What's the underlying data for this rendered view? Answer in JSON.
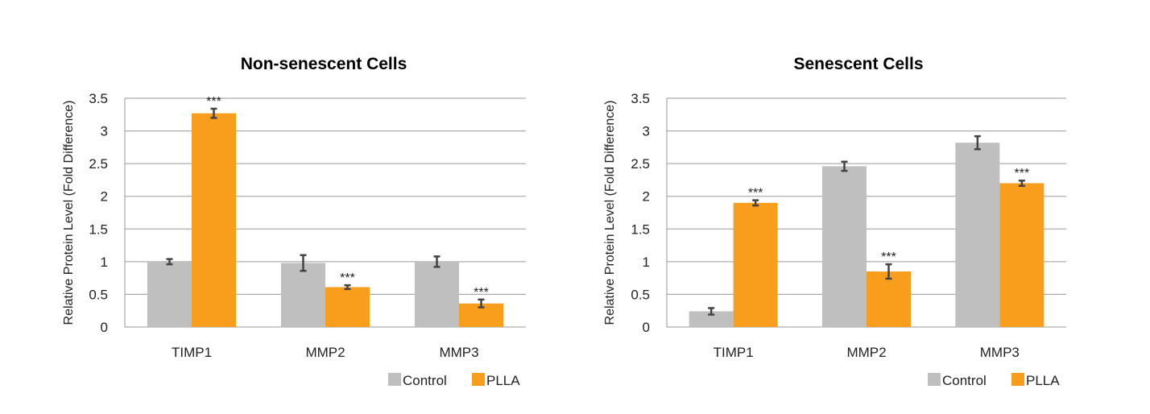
{
  "chart_data": [
    {
      "type": "bar",
      "title": "Non-senescent Cells",
      "xlabel": "",
      "ylabel": "Relative Protein Level (Fold Difference)",
      "ylim": [
        0,
        3.5
      ],
      "yticks": [
        "0",
        "0.5",
        "1",
        "1.5",
        "2",
        "2.5",
        "3",
        "3.5"
      ],
      "ytick_values": [
        0,
        0.5,
        1,
        1.5,
        2,
        2.5,
        3,
        3.5
      ],
      "grid": true,
      "legend_position": "bottom-right",
      "categories": [
        "TIMP1",
        "MMP2",
        "MMP3"
      ],
      "series": [
        {
          "name": "Control",
          "color": "#bfbfbf",
          "values": [
            1.0,
            0.98,
            1.0
          ],
          "errors": [
            0.04,
            0.12,
            0.08
          ],
          "annotations": [
            "",
            "",
            ""
          ]
        },
        {
          "name": "PLLA",
          "color": "#f99d1c",
          "values": [
            3.27,
            0.61,
            0.36
          ],
          "errors": [
            0.07,
            0.03,
            0.06
          ],
          "annotations": [
            "***",
            "***",
            "***"
          ]
        }
      ]
    },
    {
      "type": "bar",
      "title": "Senescent Cells",
      "xlabel": "",
      "ylabel": "Relative Protein Level (Fold Difference)",
      "ylim": [
        0,
        3.5
      ],
      "yticks": [
        "0",
        "0.5",
        "1",
        "1.5",
        "2",
        "2.5",
        "3",
        "3.5"
      ],
      "ytick_values": [
        0,
        0.5,
        1,
        1.5,
        2,
        2.5,
        3,
        3.5
      ],
      "grid": true,
      "legend_position": "bottom-right",
      "categories": [
        "TIMP1",
        "MMP2",
        "MMP3"
      ],
      "series": [
        {
          "name": "Control",
          "color": "#bfbfbf",
          "values": [
            0.24,
            2.46,
            2.82
          ],
          "errors": [
            0.05,
            0.07,
            0.1
          ],
          "annotations": [
            "",
            "",
            ""
          ]
        },
        {
          "name": "PLLA",
          "color": "#f99d1c",
          "values": [
            1.9,
            0.85,
            2.2
          ],
          "errors": [
            0.04,
            0.11,
            0.04
          ],
          "annotations": [
            "***",
            "***",
            "***"
          ]
        }
      ]
    }
  ]
}
